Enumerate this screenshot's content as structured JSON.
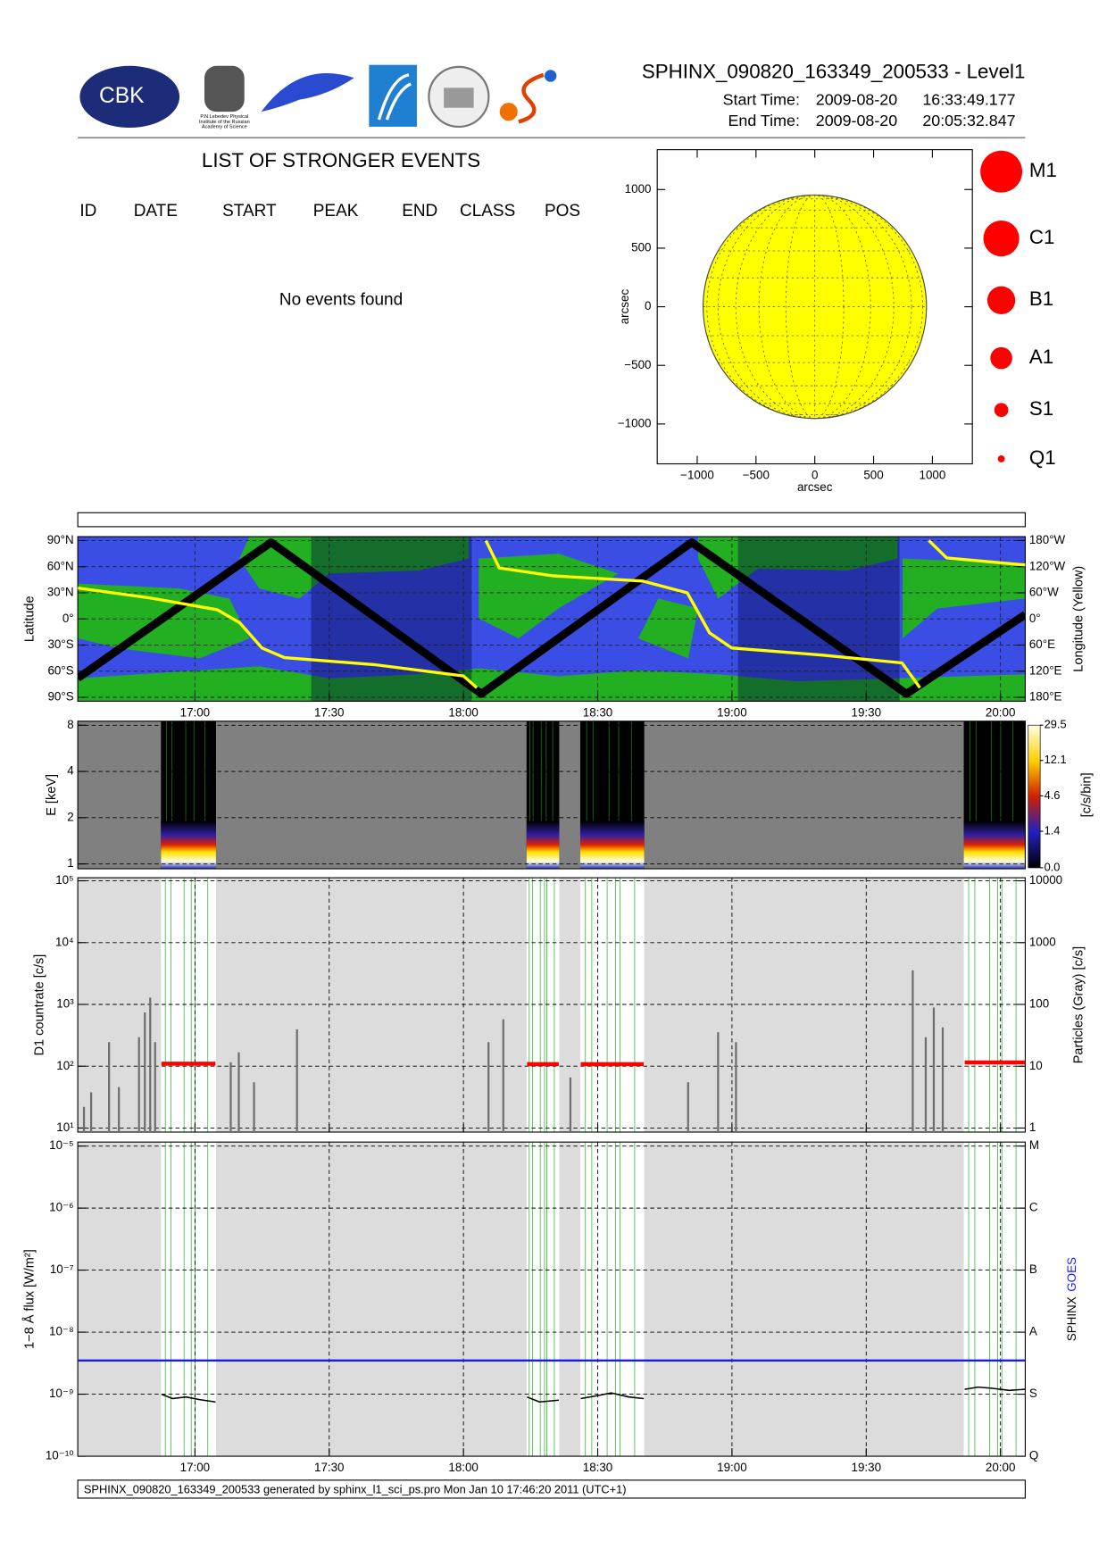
{
  "header": {
    "title": "SPHINX_090820_163349_200533 - Level1",
    "logo_text": "CBK",
    "logo_caption": [
      "P.N.Lebedev Physical",
      "Institute of the Russian",
      "Academy of Science"
    ],
    "start_label": "Start Time:",
    "start_date": "2009-08-20",
    "start_time": "16:33:49.177",
    "end_label": "End Time:",
    "end_date": "2009-08-20",
    "end_time": "20:05:32.847"
  },
  "events": {
    "title": "LIST OF STRONGER EVENTS",
    "columns": [
      "ID",
      "DATE",
      "START",
      "PEAK",
      "END",
      "CLASS",
      "POS"
    ],
    "message": "No events found"
  },
  "footer": "SPHINX_090820_163349_200533 generated by sphinx_l1_sci_ps.pro Mon Jan 10 17:46:20 2011 (UTC+1)",
  "chart_data": [
    {
      "type": "disk",
      "xlim": [
        -1340,
        1340
      ],
      "ylim": [
        -1340,
        1340
      ],
      "xticks": [
        {
          "value": -1000,
          "label": "−1000"
        },
        {
          "value": -500,
          "label": "−500"
        },
        0,
        500,
        1000
      ],
      "yticks": [
        {
          "value": -1000,
          "label": "−1000"
        },
        {
          "value": -500,
          "label": "−500"
        },
        0,
        500,
        1000
      ],
      "xlabel": "arcsec",
      "ylabel": "arcsec",
      "radius": 950,
      "color": "#ffff00",
      "legend": {
        "classes": [
          "M1",
          "C1",
          "B1",
          "A1",
          "S1",
          "Q1"
        ],
        "color": "#ff0000"
      }
    },
    {
      "type": "line",
      "xlim": [
        "16:33:49",
        "20:05:32"
      ],
      "xticks": [
        "17:00",
        "17:30",
        "18:00",
        "18:30",
        "19:00",
        "19:30",
        "20:00"
      ],
      "grid": true,
      "ylim": [
        -94.5,
        94.5
      ],
      "yticks": [
        {
          "value": 90,
          "label": "90°N"
        },
        {
          "value": 60,
          "label": "60°N"
        },
        {
          "value": 30,
          "label": "30°N"
        },
        {
          "value": 0,
          "label": "0°"
        },
        {
          "value": -30,
          "label": "30°S"
        },
        {
          "value": -60,
          "label": "60°S"
        },
        {
          "value": -90,
          "label": "90°S"
        }
      ],
      "y2lim": [
        -189,
        189
      ],
      "y2ticks": [
        {
          "value": 180,
          "label": "180°W"
        },
        {
          "value": 120,
          "label": "120°W"
        },
        {
          "value": 60,
          "label": "60°W"
        },
        {
          "value": 0,
          "label": "0°"
        },
        {
          "value": -60,
          "label": "60°E"
        },
        {
          "value": -120,
          "label": "120°E"
        },
        {
          "value": -180,
          "label": "180°E"
        }
      ],
      "ylabel": "Latitude",
      "y2label": "Longitude (Yellow)",
      "series": [
        {
          "color": "#000000",
          "x": [
            "16:33:49",
            "17:17:00",
            "18:04:00",
            "18:51:00",
            "19:39:00",
            "20:05:32"
          ],
          "values": [
            -68,
            88,
            -86,
            88,
            -86,
            5
          ]
        },
        {
          "color": "#ffff00",
          "axis": "y2",
          "x": [
            "16:33:49",
            "16:50:00",
            "17:05:00",
            "17:10:00",
            "17:15:00",
            "17:20:00",
            "17:40:00",
            "18:00:00",
            "18:03:00",
            null,
            "18:05:00",
            "18:08:00",
            "18:20:00",
            "18:40:00",
            "18:50:00",
            "18:55:00",
            "19:00:00",
            "19:20:00",
            "19:38:00",
            "19:42:00",
            null,
            "19:44:00",
            "19:48:00",
            "20:05:32"
          ],
          "values": [
            71,
            48,
            21,
            -9,
            -67,
            -89,
            -105,
            -131,
            -158,
            null,
            180,
            117,
            99,
            87,
            60,
            -32,
            -67,
            -83,
            -101,
            -158,
            null,
            180,
            140,
            124
          ]
        }
      ]
    },
    {
      "type": "spectrogram",
      "xlim": [
        "16:33:49",
        "20:05:32"
      ],
      "log": true,
      "grid": true,
      "ylim": [
        0.93,
        8.5
      ],
      "yticks": [
        1,
        2,
        4,
        8
      ],
      "ylabel": "E [keV]",
      "intervals": [
        [
          "16:52:24",
          "17:04:42"
        ],
        [
          "18:14:06",
          "18:21:24"
        ],
        [
          "18:26:06",
          "18:40:24"
        ],
        [
          "19:51:48",
          "20:05:32"
        ]
      ],
      "colorbar": {
        "clim": [
          0,
          29.5
        ],
        "scale": "log1p",
        "ticks": [
          29.5,
          12.1,
          4.6,
          1.4,
          {
            "value": 0,
            "label": "0.0"
          }
        ],
        "label": "[c/s/bin]"
      }
    },
    {
      "type": "bar",
      "xlim": [
        "16:33:49",
        "20:05:32"
      ],
      "xticks": [
        "17:00",
        "17:30",
        "18:00",
        "18:30",
        "19:00",
        "19:30",
        "20:00"
      ],
      "xtick_labels": false,
      "grid": true,
      "log": true,
      "ylim": [
        8.6,
        112000
      ],
      "yticks": [
        {
          "value": 10,
          "label": "10¹"
        },
        {
          "value": 100,
          "label": "10²"
        },
        {
          "value": 1000,
          "label": "10³"
        },
        {
          "value": 10000,
          "label": "10⁴"
        },
        {
          "value": 100000,
          "label": "10⁵"
        }
      ],
      "y2lim": [
        0.86,
        11200
      ],
      "y2ticks": [
        1,
        10,
        100,
        1000,
        10000
      ],
      "ylabel": "D1 countrate [c/s]",
      "y2label": "Particles (Gray) [c/s]",
      "series": [
        {
          "color": "#6e6e6e",
          "axis": "y2",
          "x": [
            "16:35:12",
            "16:36:48",
            "16:40:48",
            "16:43:00",
            "16:47:30",
            "16:48:48",
            "16:50:00",
            "16:51:06",
            "17:08:00",
            "17:09:48",
            "17:13:12",
            "17:22:48",
            "18:05:36",
            "18:08:54",
            "18:23:54",
            "18:50:12",
            "18:56:54",
            "19:00:54",
            "19:40:24",
            "19:43:18",
            "19:45:06",
            "19:47:06"
          ],
          "values": [
            2.2,
            3.8,
            24.5,
            4.6,
            29.5,
            74,
            129,
            24.5,
            11.6,
            16.8,
            5.5,
            39.5,
            24.5,
            57.5,
            6.6,
            5.5,
            35.5,
            24.5,
            355,
            29.5,
            89,
            42.5
          ]
        },
        {
          "type": "line",
          "color": "#ff0000",
          "x": [
            "16:52:30",
            "17:04:36",
            null,
            "18:14:12",
            "18:21:18",
            null,
            "18:26:12",
            "18:40:18",
            null,
            "19:52:00",
            "20:05:30"
          ],
          "values": [
            110,
            110,
            null,
            108,
            108,
            null,
            108,
            108,
            null,
            115,
            115
          ]
        }
      ]
    },
    {
      "type": "line",
      "xlim": [
        "16:33:49",
        "20:05:32"
      ],
      "xticks": [
        "17:00",
        "17:30",
        "18:00",
        "18:30",
        "19:00",
        "19:30",
        "20:00"
      ],
      "grid": true,
      "log": true,
      "ylim": [
        1e-10,
        1.16e-05
      ],
      "yticks": [
        {
          "value": 1e-10,
          "label": "10⁻¹⁰"
        },
        {
          "value": 1e-09,
          "label": "10⁻⁹"
        },
        {
          "value": 1e-08,
          "label": "10⁻⁸"
        },
        {
          "value": 1e-07,
          "label": "10⁻⁷"
        },
        {
          "value": 1e-06,
          "label": "10⁻⁶"
        },
        {
          "value": 1e-05,
          "label": "10⁻⁵"
        }
      ],
      "y2lim": [
        1e-10,
        1.16e-05
      ],
      "y2ticks": [
        {
          "value": 1e-10,
          "label": "Q"
        },
        {
          "value": 1e-09,
          "label": "S"
        },
        {
          "value": 1e-08,
          "label": "A"
        },
        {
          "value": 1e-07,
          "label": "B"
        },
        {
          "value": 1e-06,
          "label": "C"
        },
        {
          "value": 1e-05,
          "label": "M"
        }
      ],
      "ylabel": "1−8 Å flux [W/m²]",
      "series": [
        {
          "name": "SPHINX",
          "color": "#000000",
          "x": [
            "16:52:30",
            "16:55:00",
            "16:58:00",
            "17:01:00",
            "17:04:36",
            null,
            "18:14:12",
            "18:17:00",
            "18:21:18",
            null,
            "18:26:12",
            "18:30:00",
            "18:33:00",
            "18:37:00",
            "18:40:18",
            null,
            "19:52:00",
            "19:55:00",
            "19:58:00",
            "20:02:00",
            "20:05:30"
          ],
          "values": [
            1e-09,
            8.5e-10,
            9e-10,
            8.2e-10,
            7.5e-10,
            null,
            9e-10,
            7.5e-10,
            8e-10,
            null,
            8.5e-10,
            9.5e-10,
            1.05e-09,
            9e-10,
            8.5e-10,
            null,
            1.2e-09,
            1.3e-09,
            1.25e-09,
            1.15e-09,
            1.2e-09
          ]
        },
        {
          "name": "GOES",
          "color": "#1a1aff",
          "x": [
            "16:33:49",
            "20:05:32"
          ],
          "values": [
            3.5e-09,
            3.5e-09
          ]
        }
      ]
    }
  ]
}
